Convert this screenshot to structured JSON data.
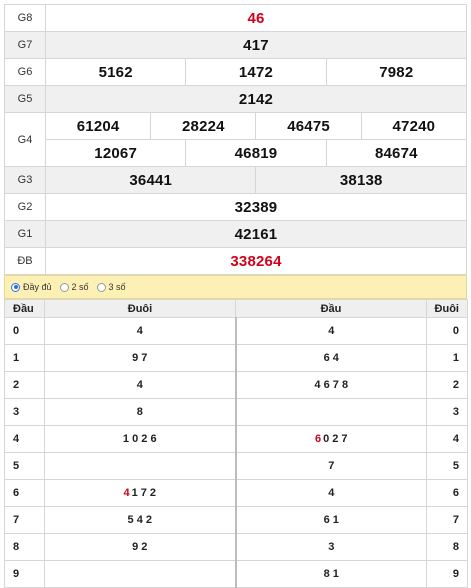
{
  "prizes": {
    "g8": {
      "label": "G8",
      "value": "46"
    },
    "g7": {
      "label": "G7",
      "value": "417"
    },
    "g6": {
      "label": "G6",
      "values": [
        "5162",
        "1472",
        "7982"
      ]
    },
    "g5": {
      "label": "G5",
      "value": "2142"
    },
    "g4": {
      "label": "G4",
      "row1": [
        "61204",
        "28224",
        "46475",
        "47240"
      ],
      "row2": [
        "12067",
        "46819",
        "84674"
      ]
    },
    "g3": {
      "label": "G3",
      "values": [
        "36441",
        "38138"
      ]
    },
    "g2": {
      "label": "G2",
      "value": "32389"
    },
    "g1": {
      "label": "G1",
      "value": "42161"
    },
    "db": {
      "label": "ĐB",
      "value": "338264"
    }
  },
  "options": {
    "full": "Đầy đủ",
    "two": "2 số",
    "three": "3 số",
    "selected": "full"
  },
  "loto": {
    "headers": {
      "dau": "Đầu",
      "duoi": "Đuôi",
      "dau2": "Đầu",
      "duoi2": "Đuôi"
    },
    "rows": [
      {
        "head": "0",
        "tails": "4",
        "heads": "4",
        "tail": "0"
      },
      {
        "head": "1",
        "tails": "9 7",
        "heads": "6 4",
        "tail": "1"
      },
      {
        "head": "2",
        "tails": "4",
        "heads": "4 6 7 8",
        "tail": "2"
      },
      {
        "head": "3",
        "tails": "8",
        "heads": "",
        "tail": "3"
      },
      {
        "head": "4",
        "tails": "1 0 2 6",
        "heads_red": "6",
        "heads": "0 2 7",
        "tail": "4"
      },
      {
        "head": "5",
        "tails": "",
        "heads": "7",
        "tail": "5"
      },
      {
        "head": "6",
        "tails_red": "4",
        "tails": "1 7 2",
        "heads": "4",
        "tail": "6"
      },
      {
        "head": "7",
        "tails": "5 4 2",
        "heads": "6 1",
        "tail": "7"
      },
      {
        "head": "8",
        "tails": "9 2",
        "heads": "3",
        "tail": "8"
      },
      {
        "head": "9",
        "tails": "",
        "heads": "8 1",
        "tail": "9"
      }
    ]
  },
  "colors": {
    "special": "#d0021b",
    "option_bar": "#fdf0b5",
    "radio_active": "#2a6fdb"
  }
}
